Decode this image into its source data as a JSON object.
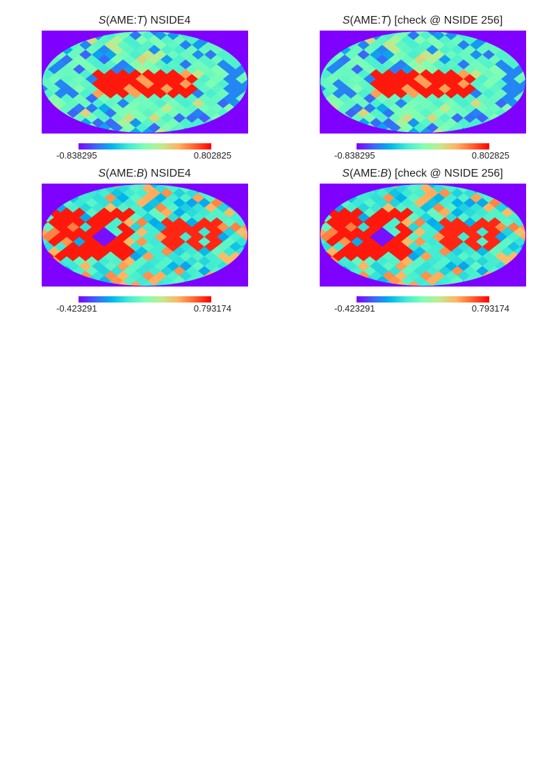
{
  "colors": {
    "background_fill": "#7f00ff",
    "colormap": [
      "#8000ff",
      "#4062fa",
      "#00b4eb",
      "#40ecd4",
      "#80ffb4",
      "#c0eb8d",
      "#ffb462",
      "#ff6231",
      "#ff0000"
    ]
  },
  "panels": [
    {
      "title": {
        "italic_sym": "S",
        "mid": "(AME:",
        "italic_sub": "T",
        "suffix": ") NSIDE4"
      },
      "colorbar": {
        "min": "-0.838295",
        "max": "0.802825"
      },
      "map": "AME_T"
    },
    {
      "title": {
        "italic_sym": "S",
        "mid": "(AME:",
        "italic_sub": "T",
        "suffix": ") [check @ NSIDE 256]"
      },
      "colorbar": {
        "min": "-0.838295",
        "max": "0.802825"
      },
      "map": "AME_T"
    },
    {
      "title": {
        "italic_sym": "S",
        "mid": "(AME:",
        "italic_sub": "B",
        "suffix": ") NSIDE4"
      },
      "colorbar": {
        "min": "-0.423291",
        "max": "0.793174"
      },
      "map": "AME_B"
    },
    {
      "title": {
        "italic_sym": "S",
        "mid": "(AME:",
        "italic_sub": "B",
        "suffix": ") [check @ NSIDE 256]"
      },
      "colorbar": {
        "min": "-0.423291",
        "max": "0.793174"
      },
      "map": "AME_B"
    }
  ]
}
